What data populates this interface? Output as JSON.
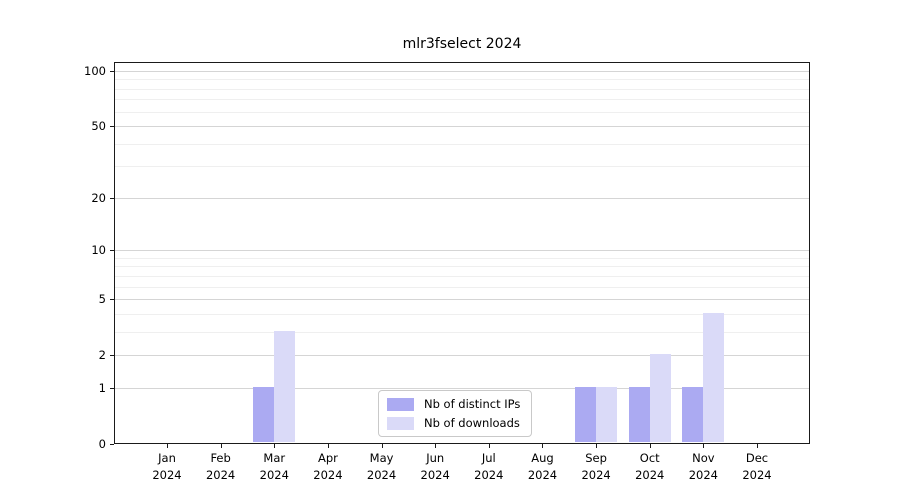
{
  "title": "mlr3fselect 2024",
  "chart_data": {
    "type": "bar",
    "title": "mlr3fselect 2024",
    "months": [
      "Jan",
      "Feb",
      "Mar",
      "Apr",
      "May",
      "Jun",
      "Jul",
      "Aug",
      "Sep",
      "Oct",
      "Nov",
      "Dec"
    ],
    "year": "2024",
    "series": [
      {
        "name": "Nb of distinct IPs",
        "color": "#abaaf2",
        "values": [
          0,
          0,
          1,
          0,
          0,
          0,
          0,
          0,
          1,
          1,
          1,
          0
        ]
      },
      {
        "name": "Nb of downloads",
        "color": "#dadaf8",
        "values": [
          0,
          0,
          3,
          0,
          0,
          0,
          0,
          0,
          1,
          2,
          4,
          0
        ]
      }
    ],
    "yscale": "log10(value+1)",
    "y_ticks": [
      0,
      1,
      2,
      5,
      10,
      20,
      50,
      100
    ],
    "y_minor_ticks": [
      3,
      4,
      6,
      7,
      8,
      9,
      30,
      40,
      60,
      70,
      80,
      90
    ],
    "ylim": [
      0,
      112
    ],
    "grid": true,
    "legend_position": "lower center"
  },
  "colors": {
    "distinct_ips": "#abaaf2",
    "downloads": "#dadaf8",
    "grid_major": "#d5d5d5",
    "grid_minor": "#efefef",
    "axis": "#1a1a1a",
    "background": "#ffffff"
  }
}
